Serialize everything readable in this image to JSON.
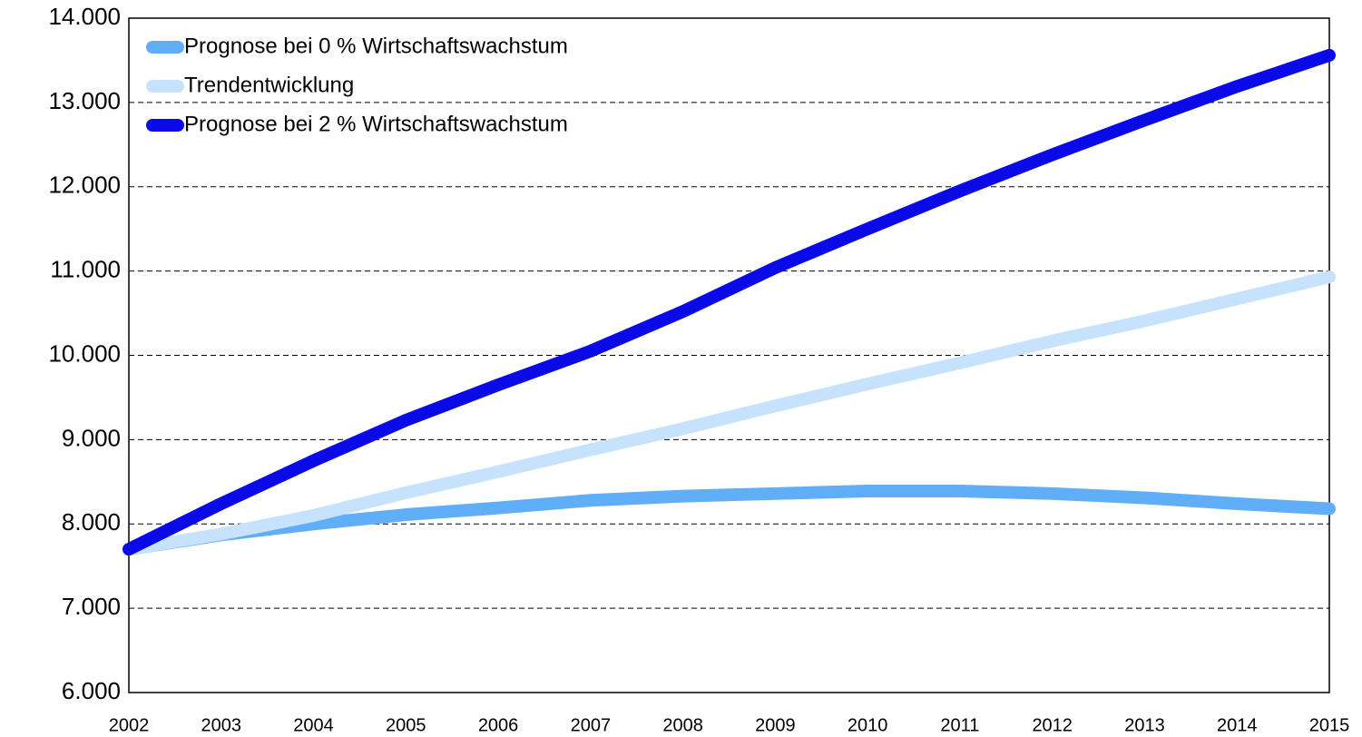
{
  "chart_data": {
    "type": "line",
    "categories": [
      "2002",
      "2003",
      "2004",
      "2005",
      "2006",
      "2007",
      "2008",
      "2009",
      "2010",
      "2011",
      "2012",
      "2013",
      "2014",
      "2015"
    ],
    "series": [
      {
        "name": "Prognose bei 0 % Wirtschaftswachstum",
        "color": "#60aef8",
        "values": [
          7700,
          7870,
          8000,
          8110,
          8190,
          8280,
          8330,
          8360,
          8390,
          8390,
          8360,
          8310,
          8240,
          8180
        ]
      },
      {
        "name": "Trendentwicklung",
        "color": "#c6e2fc",
        "values": [
          7700,
          7880,
          8100,
          8370,
          8620,
          8880,
          9130,
          9400,
          9660,
          9910,
          10170,
          10410,
          10670,
          10930
        ]
      },
      {
        "name": "Prognose bei 2 % Wirtschaftswachstum",
        "color": "#0a0ae8",
        "values": [
          7700,
          8240,
          8750,
          9230,
          9650,
          10050,
          10520,
          11040,
          11500,
          11950,
          12380,
          12790,
          13190,
          13560
        ]
      }
    ],
    "ylim": [
      6000,
      14000
    ],
    "yticks": [
      {
        "value": 6000,
        "label": "6.000"
      },
      {
        "value": 7000,
        "label": "7.000"
      },
      {
        "value": 8000,
        "label": "8.000"
      },
      {
        "value": 9000,
        "label": "9.000"
      },
      {
        "value": 10000,
        "label": "10.000"
      },
      {
        "value": 11000,
        "label": "11.000"
      },
      {
        "value": 12000,
        "label": "12.000"
      },
      {
        "value": 13000,
        "label": "13.000"
      },
      {
        "value": 14000,
        "label": "14.000"
      }
    ],
    "grid": true,
    "legend": "upper left"
  }
}
